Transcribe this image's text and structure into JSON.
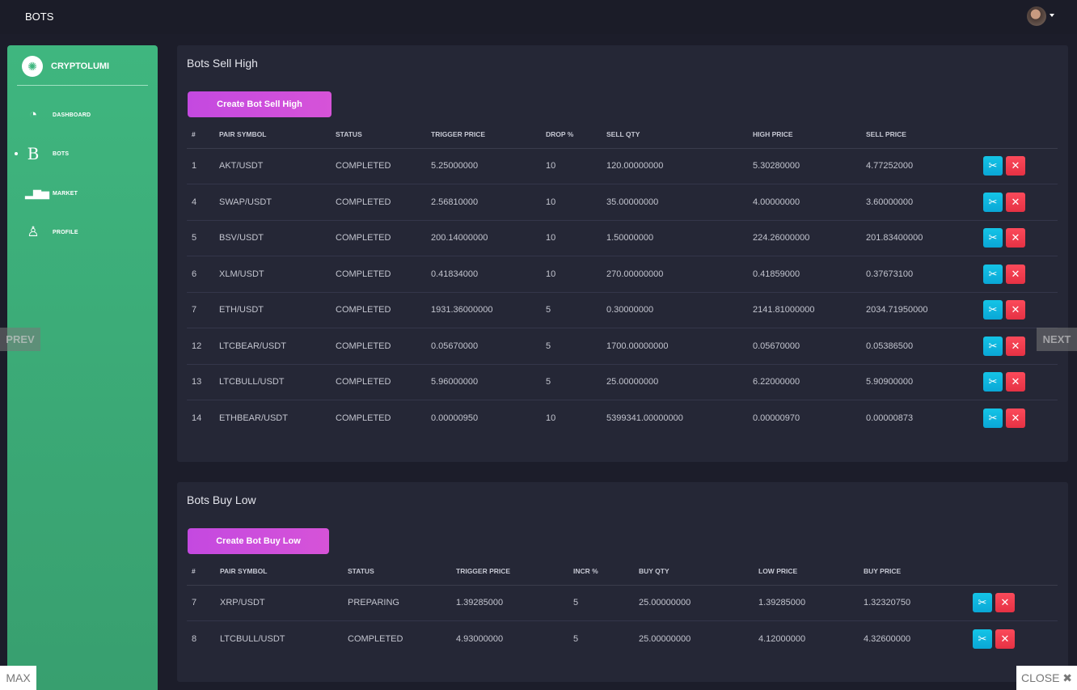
{
  "header": {
    "title": "BOTS"
  },
  "sidebar": {
    "brand": "CRYPTOLUMI",
    "items": [
      {
        "label": "DASHBOARD",
        "icon": "pie-chart-icon"
      },
      {
        "label": "BOTS",
        "icon": "bitcoin-b-icon",
        "active": true
      },
      {
        "label": "MARKET",
        "icon": "bar-chart-icon"
      },
      {
        "label": "PROFILE",
        "icon": "user-icon"
      }
    ]
  },
  "sell": {
    "title": "Bots Sell High",
    "create_label": "Create Bot Sell High",
    "columns": [
      "#",
      "PAIR SYMBOL",
      "STATUS",
      "TRIGGER PRICE",
      "DROP %",
      "SELL QTY",
      "HIGH PRICE",
      "SELL PRICE",
      ""
    ],
    "rows": [
      [
        "1",
        "AKT/USDT",
        "COMPLETED",
        "5.25000000",
        "10",
        "120.00000000",
        "5.30280000",
        "4.77252000"
      ],
      [
        "4",
        "SWAP/USDT",
        "COMPLETED",
        "2.56810000",
        "10",
        "35.00000000",
        "4.00000000",
        "3.60000000"
      ],
      [
        "5",
        "BSV/USDT",
        "COMPLETED",
        "200.14000000",
        "10",
        "1.50000000",
        "224.26000000",
        "201.83400000"
      ],
      [
        "6",
        "XLM/USDT",
        "COMPLETED",
        "0.41834000",
        "10",
        "270.00000000",
        "0.41859000",
        "0.37673100"
      ],
      [
        "7",
        "ETH/USDT",
        "COMPLETED",
        "1931.36000000",
        "5",
        "0.30000000",
        "2141.81000000",
        "2034.71950000"
      ],
      [
        "12",
        "LTCBEAR/USDT",
        "COMPLETED",
        "0.05670000",
        "5",
        "1700.00000000",
        "0.05670000",
        "0.05386500"
      ],
      [
        "13",
        "LTCBULL/USDT",
        "COMPLETED",
        "5.96000000",
        "5",
        "25.00000000",
        "6.22000000",
        "5.90900000"
      ],
      [
        "14",
        "ETHBEAR/USDT",
        "COMPLETED",
        "0.00000950",
        "10",
        "5399341.00000000",
        "0.00000970",
        "0.00000873"
      ]
    ]
  },
  "buy": {
    "title": "Bots Buy Low",
    "create_label": "Create Bot Buy Low",
    "columns": [
      "#",
      "PAIR SYMBOL",
      "STATUS",
      "TRIGGER PRICE",
      "INCR %",
      "BUY QTY",
      "LOW PRICE",
      "BUY PRICE",
      ""
    ],
    "rows": [
      [
        "7",
        "XRP/USDT",
        "PREPARING",
        "1.39285000",
        "5",
        "25.00000000",
        "1.39285000",
        "1.32320750"
      ],
      [
        "8",
        "LTCBULL/USDT",
        "COMPLETED",
        "4.93000000",
        "5",
        "25.00000000",
        "4.12000000",
        "4.32600000"
      ]
    ]
  },
  "overlay": {
    "prev": "PREV",
    "next": "NEXT",
    "max": "MAX",
    "close": "CLOSE ✖"
  },
  "colors": {
    "sidebar": "#3fb67f",
    "create": "#c94de0",
    "edit": "#10b8e0",
    "delete": "#f0404f"
  }
}
